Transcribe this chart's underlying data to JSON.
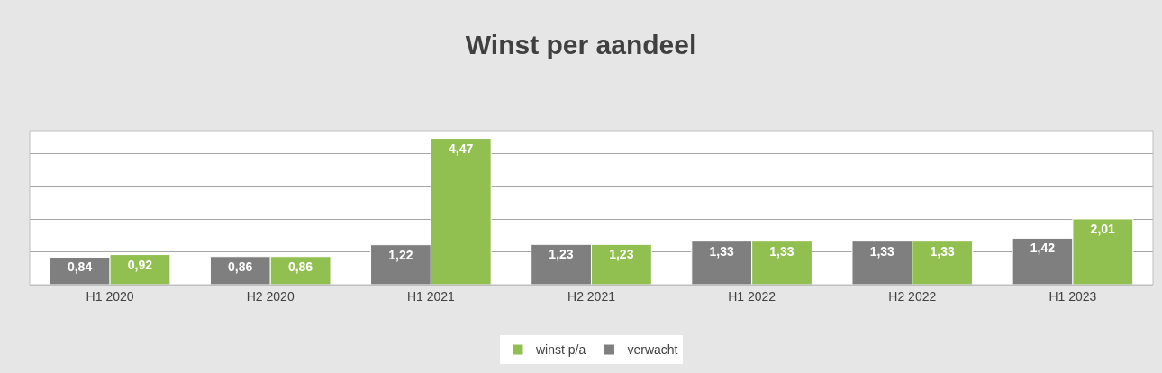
{
  "chart_data": {
    "type": "bar",
    "title": "Winst per aandeel",
    "categories": [
      "H1 2020",
      "H2 2020",
      "H1 2021",
      "H2 2021",
      "H1 2022",
      "H2 2022",
      "H1 2023"
    ],
    "series": [
      {
        "name": "verwacht",
        "color": "#7f7f7f",
        "values": [
          0.84,
          0.86,
          1.22,
          1.23,
          1.33,
          1.33,
          1.42
        ],
        "value_labels": [
          "0,84",
          "0,86",
          "1,22",
          "1,23",
          "1,33",
          "1,33",
          "1,42"
        ]
      },
      {
        "name": "winst p/a",
        "color": "#92c050",
        "values": [
          0.92,
          0.86,
          4.47,
          1.23,
          1.33,
          1.33,
          2.01
        ],
        "value_labels": [
          "0,92",
          "0,86",
          "4,47",
          "1,23",
          "1,33",
          "1,33",
          "2,01"
        ]
      }
    ],
    "tick_labels": "x",
    "grid": "y",
    "legend": "bottom"
  }
}
